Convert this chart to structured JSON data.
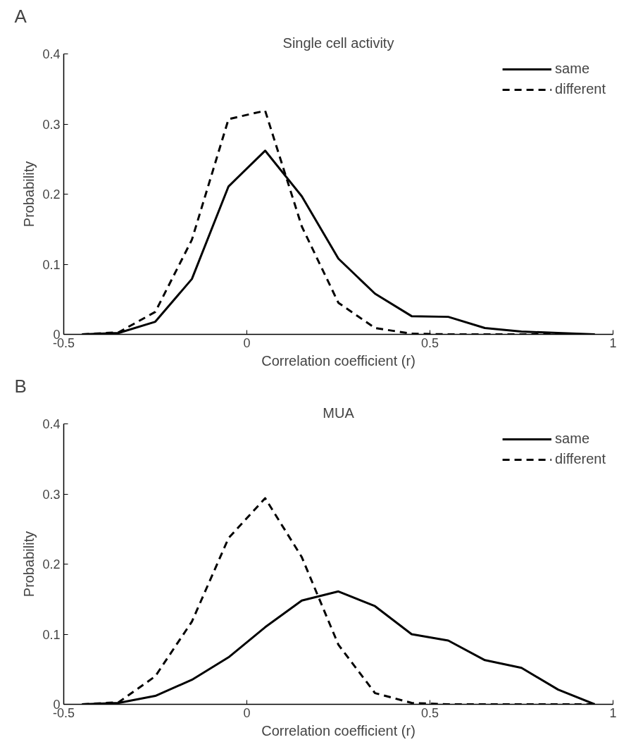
{
  "chart_data": [
    {
      "type": "line",
      "title": "Single cell activity",
      "xlabel": "Correlation coefficient (r)",
      "ylabel": "Probability",
      "annotations": [
        "A"
      ],
      "x": [
        -0.45,
        -0.35,
        -0.25,
        -0.15,
        -0.05,
        0.05,
        0.15,
        0.25,
        0.35,
        0.45,
        0.55,
        0.65,
        0.75,
        0.85,
        0.95
      ],
      "xlim": [
        -0.5,
        1
      ],
      "xticks": [
        -0.5,
        0,
        0.5,
        1
      ],
      "ylim": [
        0,
        0.4
      ],
      "yticks": [
        0,
        0.1,
        0.2,
        0.3,
        0.4
      ],
      "legend": "top right",
      "marker": "none",
      "series": [
        {
          "name": "same",
          "color": "#000000",
          "line_style": "solid",
          "values": [
            0,
            0.002,
            0.018,
            0.079,
            0.211,
            0.262,
            0.197,
            0.108,
            0.058,
            0.026,
            0.025,
            0.009,
            0.004,
            0.002,
            0
          ]
        },
        {
          "name": "different",
          "color": "#000000",
          "line_style": "dashed",
          "values": [
            0,
            0.003,
            0.032,
            0.135,
            0.307,
            0.319,
            0.154,
            0.045,
            0.009,
            0.001,
            0,
            0,
            0,
            0,
            0
          ]
        }
      ]
    },
    {
      "type": "line",
      "title": "MUA",
      "xlabel": "Correlation coefficient (r)",
      "ylabel": "Probability",
      "annotations": [
        "B"
      ],
      "x": [
        -0.45,
        -0.35,
        -0.25,
        -0.15,
        -0.05,
        0.05,
        0.15,
        0.25,
        0.35,
        0.45,
        0.55,
        0.65,
        0.75,
        0.85,
        0.95
      ],
      "xlim": [
        -0.5,
        1
      ],
      "xticks": [
        -0.5,
        0,
        0.5,
        1
      ],
      "ylim": [
        0,
        0.4
      ],
      "yticks": [
        0,
        0.1,
        0.2,
        0.3,
        0.4
      ],
      "legend": "top right",
      "marker": "none",
      "series": [
        {
          "name": "same",
          "color": "#000000",
          "line_style": "solid",
          "values": [
            0,
            0.002,
            0.012,
            0.035,
            0.067,
            0.11,
            0.148,
            0.161,
            0.14,
            0.1,
            0.091,
            0.063,
            0.052,
            0.021,
            0
          ]
        },
        {
          "name": "different",
          "color": "#000000",
          "line_style": "dashed",
          "values": [
            0,
            0.003,
            0.04,
            0.118,
            0.237,
            0.294,
            0.21,
            0.085,
            0.016,
            0.002,
            0,
            0,
            0,
            0,
            0
          ]
        }
      ]
    }
  ]
}
